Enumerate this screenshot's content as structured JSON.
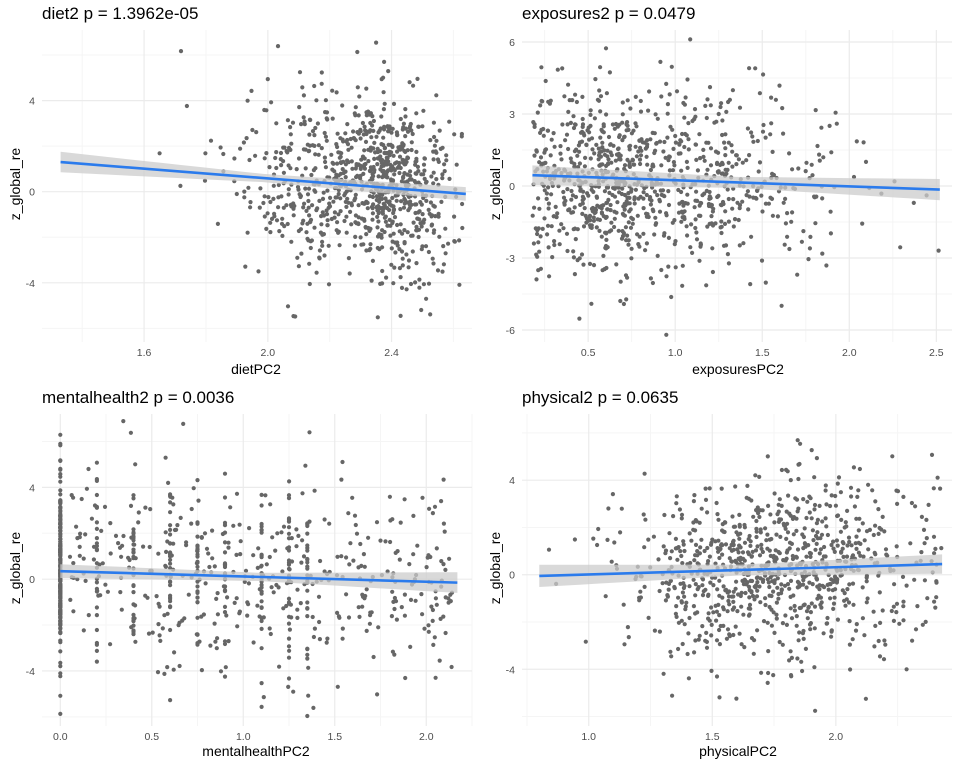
{
  "colors": {
    "points": "#666666",
    "line": "#2b7bec",
    "band": "#cccccc",
    "grid_major": "#ebebeb",
    "grid_minor": "#f5f5f5"
  },
  "chart_data": [
    {
      "type": "scatter",
      "title": "diet2 p = 1.3962e-05",
      "xlabel": "dietPC2",
      "ylabel": "z_global_re",
      "xlim": [
        1.27,
        2.66
      ],
      "ylim": [
        -6.6,
        7.1
      ],
      "xticks": [
        1.6,
        2.0,
        2.4
      ],
      "xtick_labels": [
        "1.6",
        "2.0",
        "2.4"
      ],
      "yticks": [
        -4,
        0,
        4
      ],
      "ytick_labels": [
        "-4",
        "0",
        "4"
      ],
      "x_center": 2.35,
      "x_sd": 0.2,
      "x_skew": "left",
      "y_sd": 2.0,
      "n_points": 900,
      "fit": {
        "x": [
          1.33,
          2.64
        ],
        "y": [
          1.3,
          -0.1
        ],
        "se": [
          0.45,
          0.2
        ]
      },
      "grid": true
    },
    {
      "type": "scatter",
      "title": "exposures2 p = 0.0479",
      "xlabel": "exposuresPC2",
      "ylabel": "z_global_re",
      "xlim": [
        0.12,
        2.59
      ],
      "ylim": [
        -6.5,
        6.5
      ],
      "xticks": [
        0.5,
        1.0,
        1.5,
        2.0,
        2.5
      ],
      "xtick_labels": [
        "0.5",
        "1.0",
        "1.5",
        "2.0",
        "2.5"
      ],
      "yticks": [
        -6,
        -3,
        0,
        3,
        6
      ],
      "ytick_labels": [
        "-6",
        "-3",
        "0",
        "3",
        "6"
      ],
      "x_center": 0.75,
      "x_sd": 0.35,
      "x_skew": "right",
      "y_sd": 1.8,
      "n_points": 950,
      "fit": {
        "x": [
          0.18,
          2.52
        ],
        "y": [
          0.45,
          -0.15
        ],
        "se": [
          0.3,
          0.35
        ]
      },
      "grid": true
    },
    {
      "type": "scatter",
      "title": "mentalhealth2 p = 0.0036",
      "xlabel": "mentalhealthPC2",
      "ylabel": "z_global_re",
      "xlim": [
        -0.1,
        2.25
      ],
      "ylim": [
        -6.4,
        7.2
      ],
      "xticks": [
        0.0,
        0.5,
        1.0,
        1.5,
        2.0
      ],
      "xtick_labels": [
        "0.0",
        "0.5",
        "1.0",
        "1.5",
        "2.0"
      ],
      "yticks": [
        -4,
        0,
        4
      ],
      "ytick_labels": [
        "-4",
        "0",
        "4"
      ],
      "x_center": 0.0,
      "x_sd": 0.6,
      "x_skew": "discrete",
      "y_sd": 2.0,
      "n_points": 850,
      "fit": {
        "x": [
          0.0,
          2.17
        ],
        "y": [
          0.35,
          -0.15
        ],
        "se": [
          0.2,
          0.45
        ]
      },
      "grid": true
    },
    {
      "type": "scatter",
      "title": "physical2 p = 0.0635",
      "xlabel": "physicalPC2",
      "ylabel": "z_global_re",
      "xlim": [
        0.73,
        2.47
      ],
      "ylim": [
        -6.4,
        6.8
      ],
      "xticks": [
        1.0,
        1.5,
        2.0
      ],
      "xtick_labels": [
        "1.0",
        "1.5",
        "2.0"
      ],
      "yticks": [
        -4,
        0,
        4
      ],
      "ytick_labels": [
        "-4",
        "0",
        "4"
      ],
      "x_center": 1.75,
      "x_sd": 0.3,
      "x_skew": "none",
      "y_sd": 1.9,
      "n_points": 900,
      "fit": {
        "x": [
          0.8,
          2.43
        ],
        "y": [
          -0.05,
          0.45
        ],
        "se": [
          0.4,
          0.3
        ]
      },
      "grid": true
    }
  ]
}
